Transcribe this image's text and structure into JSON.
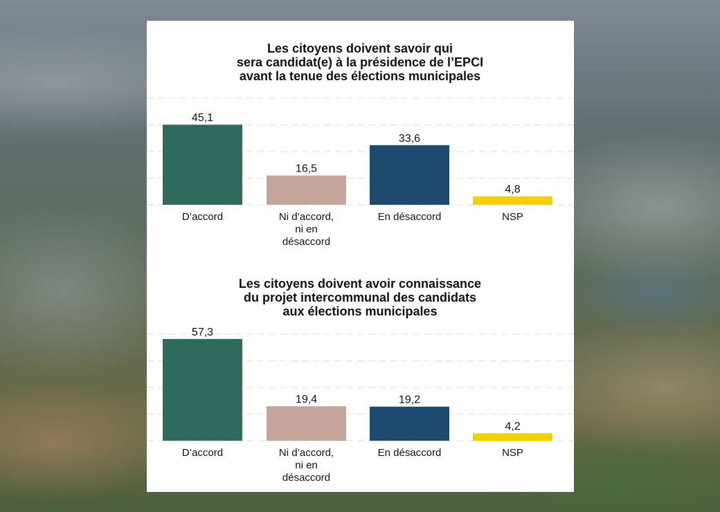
{
  "chart_data": [
    {
      "type": "bar",
      "title": "Les citoyens doivent savoir qui\nsera candidat(e) à la présidence de l’EPCI\navant la tenue des élections municipales",
      "categories": [
        "D’accord",
        "Ni d’accord,\nni en\ndésaccord",
        "En désaccord",
        "NSP"
      ],
      "values": [
        45.1,
        16.5,
        33.6,
        4.8
      ],
      "value_labels": [
        "45,1",
        "16,5",
        "33,6",
        "4,8"
      ],
      "colors": [
        "#2e6b5e",
        "#c4a49b",
        "#1e4a6e",
        "#f5d000"
      ],
      "ylim": [
        0,
        60
      ],
      "grid": true
    },
    {
      "type": "bar",
      "title": "Les citoyens doivent avoir connaissance\ndu projet intercommunal des candidats\naux élections municipales",
      "categories": [
        "D’accord",
        "Ni d’accord,\nni en\ndésaccord",
        "En désaccord",
        "NSP"
      ],
      "values": [
        57.3,
        19.4,
        19.2,
        4.2
      ],
      "value_labels": [
        "57,3",
        "19,4",
        "19,2",
        "4,2"
      ],
      "colors": [
        "#2e6b5e",
        "#c4a49b",
        "#1e4a6e",
        "#f5d000"
      ],
      "ylim": [
        0,
        60
      ],
      "grid": true
    }
  ]
}
